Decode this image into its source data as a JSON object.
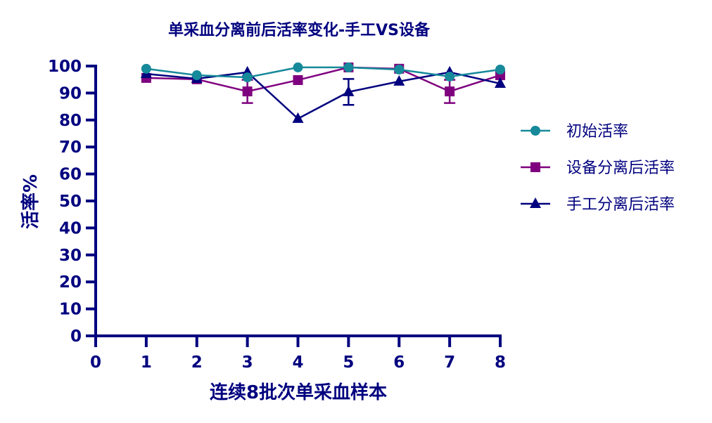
{
  "chart_data": {
    "type": "line",
    "title": "单采血分离前后活率变化-手工VS设备",
    "xlabel": "连续8批次单采血样本",
    "ylabel": "活率%",
    "x": [
      1,
      2,
      3,
      4,
      5,
      6,
      7,
      8
    ],
    "xlim": [
      0,
      8
    ],
    "ylim": [
      0,
      100
    ],
    "x_ticks": [
      "0",
      "1",
      "2",
      "3",
      "4",
      "5",
      "6",
      "7",
      "8"
    ],
    "y_ticks": [
      "0",
      "10",
      "20",
      "30",
      "40",
      "50",
      "60",
      "70",
      "80",
      "90",
      "100"
    ],
    "grid": false,
    "legend_position": "right",
    "series": [
      {
        "name": "初始活率",
        "color": "#16899a",
        "marker": "circle",
        "values": [
          99.0,
          96.6,
          95.8,
          99.5,
          99.5,
          98.7,
          96.1,
          98.7
        ],
        "error": [
          0,
          0,
          0,
          0,
          0,
          0,
          0,
          0
        ]
      },
      {
        "name": "设备分离后活率",
        "color": "#7f007f",
        "marker": "square",
        "values": [
          95.6,
          95.1,
          90.6,
          94.8,
          99.5,
          99.0,
          90.6,
          96.6
        ],
        "error": [
          0,
          0,
          4.3,
          0,
          0,
          0,
          4.3,
          0
        ]
      },
      {
        "name": "手工分离后活率",
        "color": "#00007f",
        "marker": "triangle",
        "values": [
          97.1,
          95.3,
          97.7,
          80.5,
          90.4,
          94.3,
          97.7,
          93.5
        ],
        "error": [
          0,
          0,
          0,
          0,
          4.8,
          0,
          0,
          0
        ]
      }
    ]
  }
}
